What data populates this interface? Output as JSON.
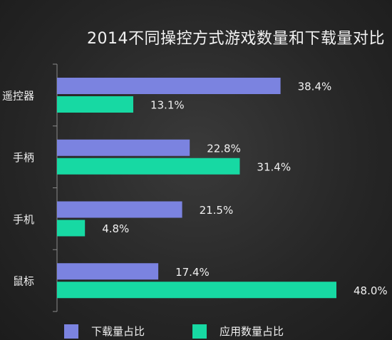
{
  "chart_data": {
    "type": "bar",
    "orientation": "horizontal",
    "title": "2014不同操控方式游戏数量和下载量对比",
    "categories": [
      "遥控器",
      "手柄",
      "手机",
      "鼠标"
    ],
    "series": [
      {
        "name": "下载量占比",
        "color": "#7b83e0",
        "values": [
          38.4,
          22.8,
          21.5,
          17.4
        ],
        "labels": [
          "38.4%",
          "22.8%",
          "21.5%",
          "17.4%"
        ]
      },
      {
        "name": "应用数量占比",
        "color": "#17d9a3",
        "values": [
          13.1,
          31.4,
          4.8,
          48.0
        ],
        "labels": [
          "13.1%",
          "31.4%",
          "4.8%",
          "48.0%"
        ]
      }
    ],
    "xlim": [
      0,
      48
    ],
    "grid": false,
    "legend_position": "bottom"
  }
}
